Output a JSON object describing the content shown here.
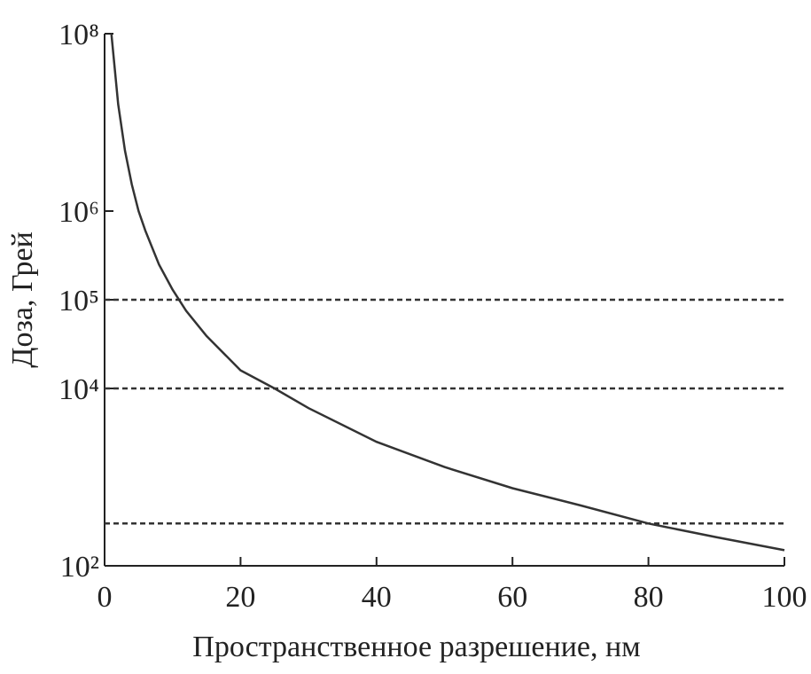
{
  "chart_data": {
    "type": "line",
    "x_label": "Пространственное разрешение, нм",
    "y_label": "Доза, Грей",
    "x": [
      1,
      2,
      3,
      4,
      5,
      6,
      8,
      10,
      12,
      15,
      20,
      25,
      30,
      40,
      50,
      60,
      70,
      80,
      90,
      100
    ],
    "series": [
      {
        "color": "#333333",
        "values": [
          100000000,
          16000000,
          4800000,
          2000000,
          1000000,
          600000,
          250000,
          130000,
          75000,
          39000,
          16000,
          10000,
          6000,
          2500,
          1300,
          750,
          480,
          300,
          210,
          150
        ]
      }
    ],
    "xlim": [
      0,
      100
    ],
    "xticks": [
      0,
      20,
      40,
      60,
      80,
      100
    ],
    "ylim": [
      100,
      100000000
    ],
    "log_y": true,
    "yticks": [
      {
        "value": 100,
        "label": "10²"
      },
      {
        "value": 10000,
        "label": "10⁴"
      },
      {
        "value": 100000,
        "label": "10⁵"
      },
      {
        "value": 1000000,
        "label": "10⁶"
      },
      {
        "value": 100000000,
        "label": "10⁸"
      }
    ],
    "reference_lines": [
      100000,
      10000,
      300
    ]
  }
}
